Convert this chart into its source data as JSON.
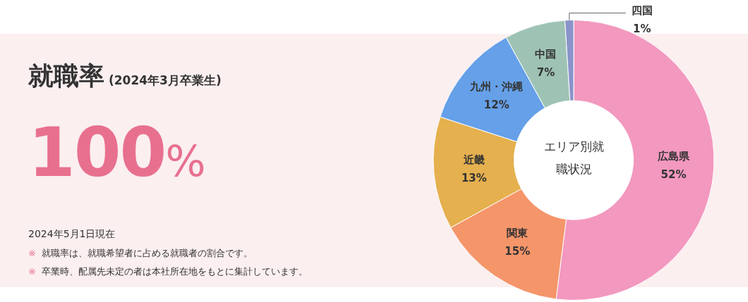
{
  "chart_data": [
    {
      "type": "other",
      "title": "就職率",
      "subtitle": "(2024年3月卒業生)",
      "annotations": [
        "100%",
        "2024年5月1日現在",
        "※ 就職率は、就職希望者に占める就職者の割合です。",
        "※ 卒業時、配属先未定の者は本社所在地をもとに集計しています。"
      ]
    },
    {
      "type": "donut",
      "title": "エリア別就職状況",
      "categories": [
        "広島県",
        "関東",
        "近畿",
        "九州・沖縄",
        "中国",
        "四国"
      ],
      "values": [
        52,
        15,
        13,
        12,
        7,
        1
      ],
      "colors": [
        "#f398bf",
        "#f5956a",
        "#e5b04e",
        "#65a0e8",
        "#9ec3b5",
        "#8b93cb"
      ],
      "value_labels": [
        "52%",
        "15%",
        "13%",
        "12%",
        "7%",
        "1%"
      ],
      "legend": false
    }
  ]
}
